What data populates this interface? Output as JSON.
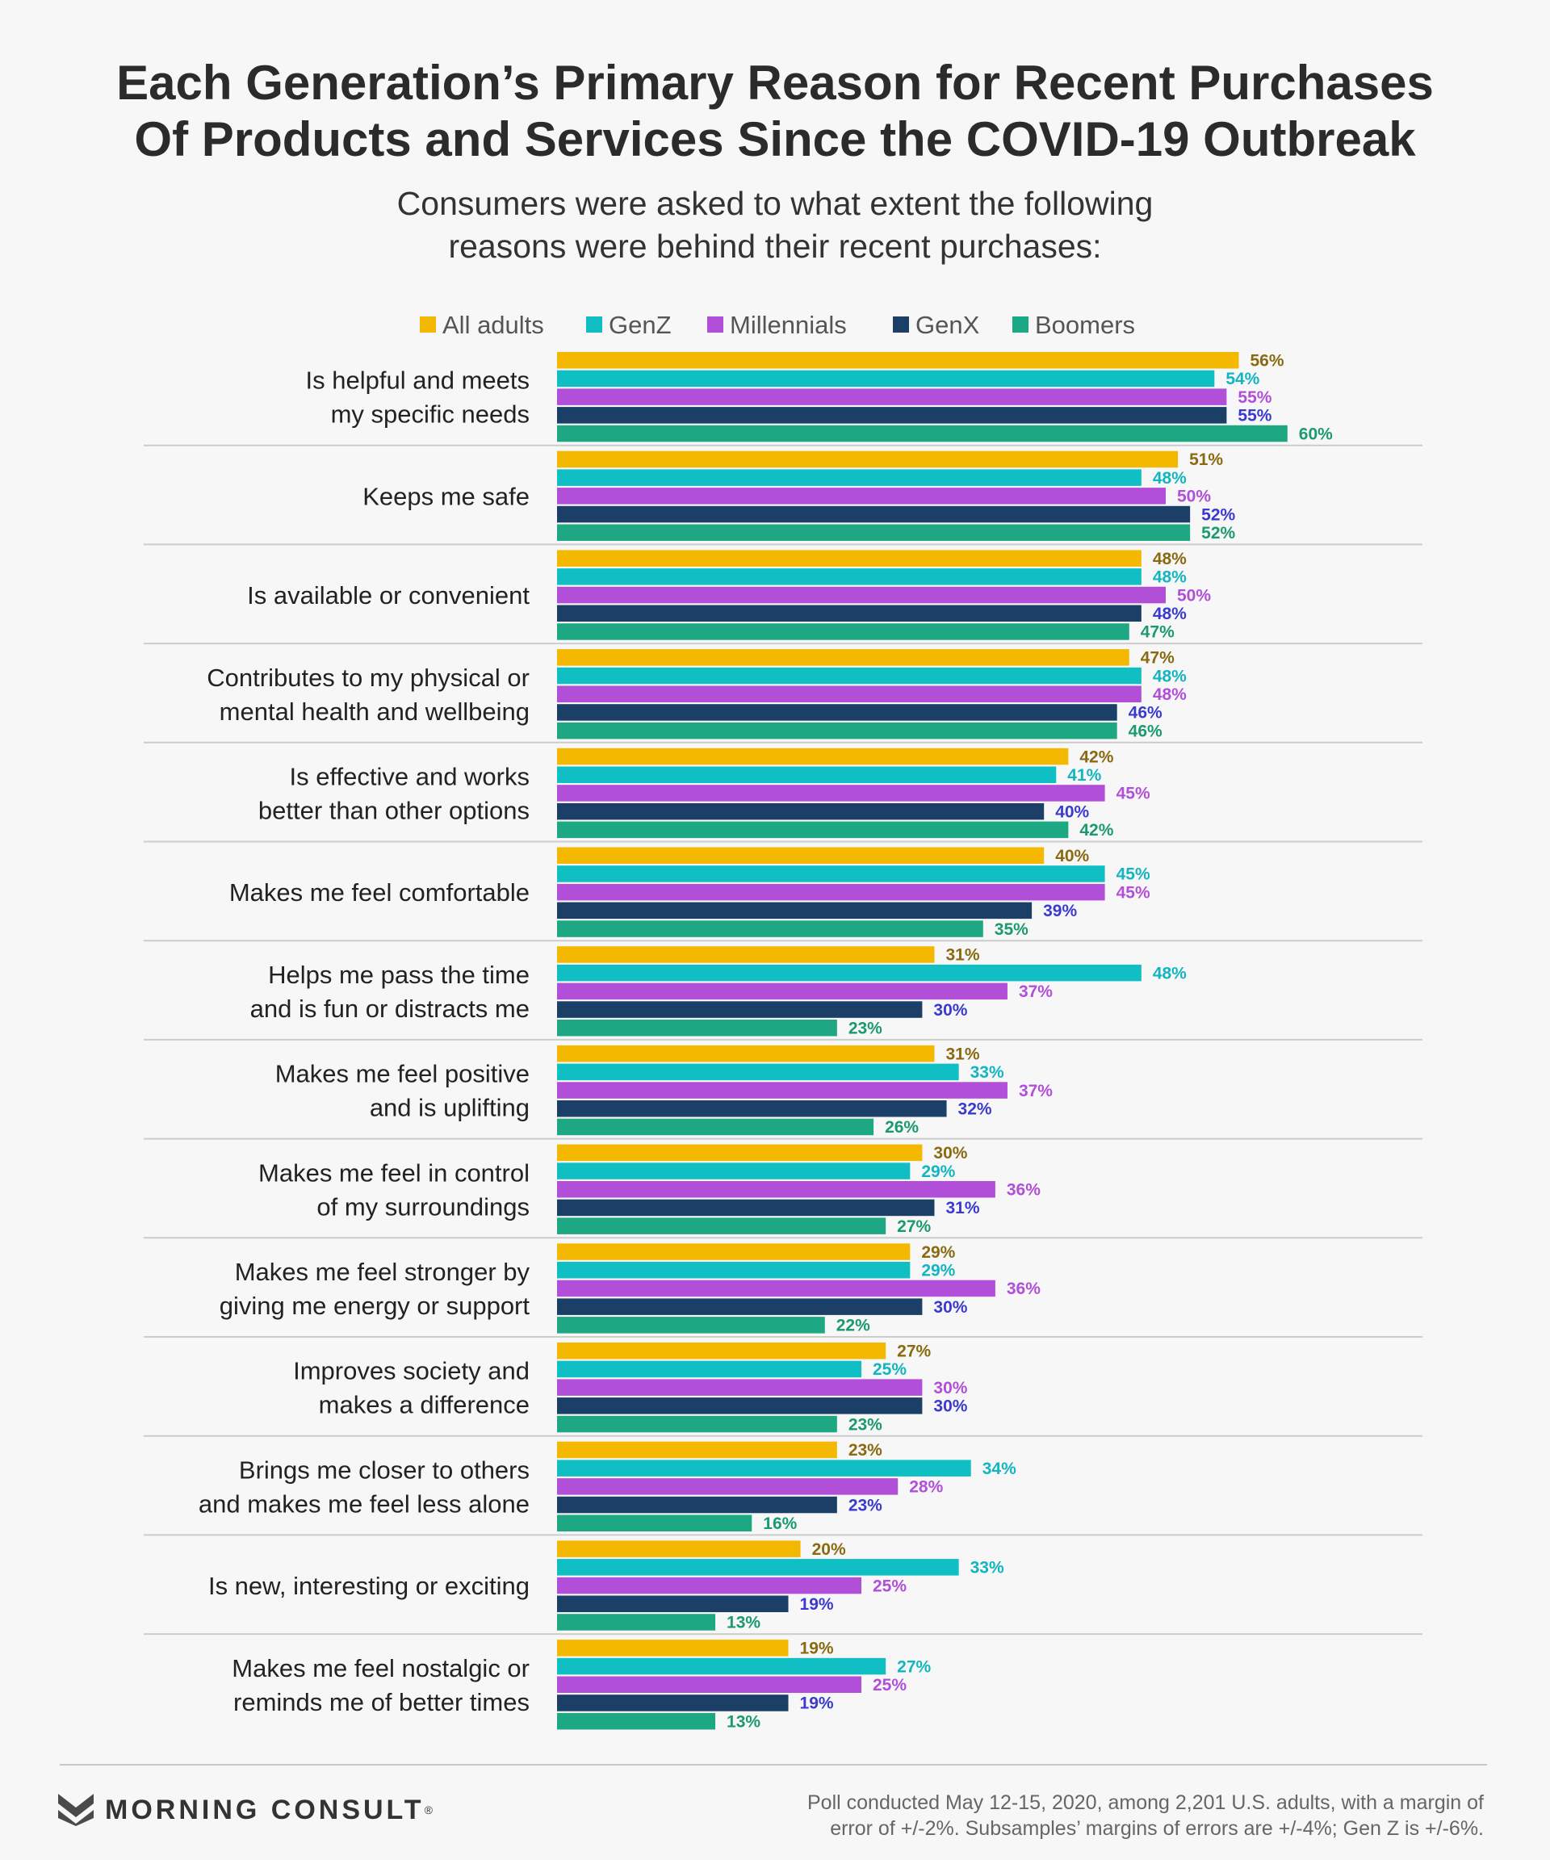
{
  "title_line1": "Each Generation’s Primary Reason for Recent Purchases",
  "title_line2": "Of Products and Services Since the COVID-19 Outbreak",
  "subtitle_line1": "Consumers were asked to what extent the following",
  "subtitle_line2": "reasons were behind their recent purchases:",
  "brand": {
    "name": "MORNING CONSULT",
    "mark": "®"
  },
  "footnote_line1": "Poll conducted May 12-15, 2020, among 2,201 U.S. adults, with a margin of",
  "footnote_line2": "error of +/-2%. Subsamples’ margins of errors are +/-4%; Gen Z is +/-6%.",
  "chart_data": {
    "type": "bar",
    "orientation": "horizontal",
    "legend_position": "top",
    "categories": [
      [
        "Is helpful and meets",
        "my specific needs"
      ],
      [
        "Keeps me safe"
      ],
      [
        "Is available or convenient"
      ],
      [
        "Contributes to my physical or",
        "mental health and wellbeing"
      ],
      [
        "Is effective and works",
        "better than other options"
      ],
      [
        "Makes me feel comfortable"
      ],
      [
        "Helps me pass the time",
        "and is fun or distracts me"
      ],
      [
        "Makes me feel positive",
        "and is uplifting"
      ],
      [
        "Makes me feel in control",
        "of my surroundings"
      ],
      [
        "Makes me feel stronger by",
        "giving me energy or support"
      ],
      [
        "Improves society and",
        "makes a difference"
      ],
      [
        "Brings me closer to others",
        "and makes me feel less alone"
      ],
      [
        "Is new, interesting or exciting"
      ],
      [
        "Makes me feel nostalgic or",
        "reminds me of better times"
      ]
    ],
    "series": [
      {
        "name": "All adults",
        "color": "#f5b800",
        "label_color": "#8a6a10",
        "values": [
          56,
          51,
          48,
          47,
          42,
          40,
          31,
          31,
          30,
          29,
          27,
          23,
          20,
          19
        ]
      },
      {
        "name": "GenZ",
        "color": "#0fbfc3",
        "label_color": "#12b5c0",
        "values": [
          54,
          48,
          48,
          48,
          41,
          45,
          48,
          33,
          29,
          29,
          25,
          34,
          33,
          27
        ]
      },
      {
        "name": "Millennials",
        "color": "#b24fd8",
        "label_color": "#b24fd8",
        "values": [
          55,
          50,
          50,
          48,
          45,
          45,
          37,
          37,
          36,
          36,
          30,
          28,
          25,
          25
        ]
      },
      {
        "name": "GenX",
        "color": "#1b3f66",
        "label_color": "#3a3ad0",
        "values": [
          55,
          52,
          48,
          46,
          40,
          39,
          30,
          32,
          31,
          30,
          30,
          23,
          19,
          19
        ]
      },
      {
        "name": "Boomers",
        "color": "#1ea783",
        "label_color": "#1a9a6e",
        "values": [
          60,
          52,
          47,
          46,
          42,
          35,
          23,
          26,
          27,
          22,
          23,
          16,
          13,
          13
        ]
      }
    ],
    "value_suffix": "%",
    "xlim": [
      0,
      60
    ],
    "grid": false
  }
}
